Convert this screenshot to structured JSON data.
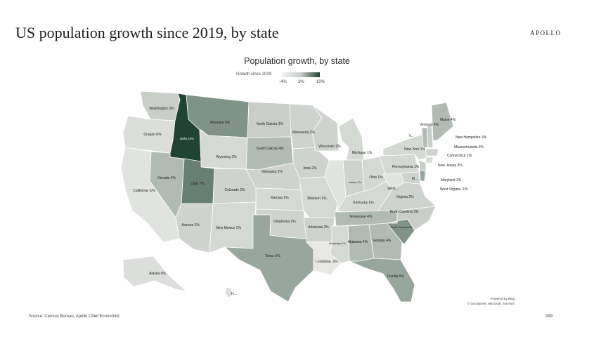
{
  "header": {
    "title": "US population growth since 2019, by state",
    "brand": "APOLLO"
  },
  "chart_title": "Population growth, by state",
  "legend": {
    "label": "Growth since 2019",
    "ticks": [
      "-4%",
      "3%",
      "10%"
    ]
  },
  "colors": {
    "low": "#f3f3f1",
    "mid": "#c9cec9",
    "high": "#1f4433",
    "border": "#ffffff",
    "label_light": "#ffffff",
    "label_dark": "#222222"
  },
  "footer": {
    "source": "Source: Census Bureau, Apollo Chief Economist",
    "page_number": "399",
    "credit_line1": "Powered by Bing",
    "credit_line2": "© GeoNames, Microsoft, TomTom"
  },
  "chart_data": {
    "type": "choropleth",
    "title": "Population growth, by state",
    "legend_title": "Growth since 2019",
    "color_scale": {
      "min": -4,
      "mid": 3,
      "max": 10,
      "unit": "%"
    },
    "states": [
      {
        "state": "Washington",
        "label": "Washington 3%",
        "value": 3
      },
      {
        "state": "Oregon",
        "label": "Oregon 0%",
        "value": 0
      },
      {
        "state": "California",
        "label": "California -1%",
        "value": -1
      },
      {
        "state": "Idaho",
        "label": "Idaho 10%",
        "value": 10
      },
      {
        "state": "Nevada",
        "label": "Nevada 4%",
        "value": 4
      },
      {
        "state": "Montana",
        "label": "Montana 6%",
        "value": 6
      },
      {
        "state": "Wyoming",
        "label": "Wyoming 1%",
        "value": 1
      },
      {
        "state": "Utah",
        "label": "Utah 7%",
        "value": 7
      },
      {
        "state": "Arizona",
        "label": "Arizona 2%",
        "value": 2
      },
      {
        "state": "Colorado",
        "label": "Colorado 2%",
        "value": 2
      },
      {
        "state": "New Mexico",
        "label": "New Mexico 1%",
        "value": 1
      },
      {
        "state": "North Dakota",
        "label": "North Dakota 3%",
        "value": 3
      },
      {
        "state": "South Dakota",
        "label": "South Dakota 4%",
        "value": 4
      },
      {
        "state": "Nebraska",
        "label": "Nebraska 2%",
        "value": 2
      },
      {
        "state": "Kansas",
        "label": "Kansas 1%",
        "value": 1
      },
      {
        "state": "Oklahoma",
        "label": "Oklahoma 2%",
        "value": 2
      },
      {
        "state": "Texas",
        "label": "Texas 5%",
        "value": 5
      },
      {
        "state": "Minnesota",
        "label": "Minnesota 2%",
        "value": 2
      },
      {
        "state": "Iowa",
        "label": "Iowa 2%",
        "value": 2
      },
      {
        "state": "Missouri",
        "label": "Missouri 1%",
        "value": 1
      },
      {
        "state": "Arkansas",
        "label": "Arkansas 2%",
        "value": 2
      },
      {
        "state": "Louisiana",
        "label": "Louisiana -2%",
        "value": -2
      },
      {
        "state": "Wisconsin",
        "label": "Wisconsin 2%",
        "value": 2
      },
      {
        "state": "Illinois",
        "label": "",
        "value": -1
      },
      {
        "state": "Michigan",
        "label": "Michigan 1%",
        "value": 1
      },
      {
        "state": "Indiana",
        "label": "Indiana 2%",
        "value": 2
      },
      {
        "state": "Ohio",
        "label": "Ohio 1%",
        "value": 1
      },
      {
        "state": "Kentucky",
        "label": "Kentucky 1%",
        "value": 1
      },
      {
        "state": "Tennessee",
        "label": "Tennessee 4%",
        "value": 4
      },
      {
        "state": "Mississippi",
        "label": "Mississippi 1%",
        "value": 1
      },
      {
        "state": "Alabama",
        "label": "Alabama 4%",
        "value": 4
      },
      {
        "state": "Georgia",
        "label": "Georgia 4%",
        "value": 4
      },
      {
        "state": "Florida",
        "label": "Florida 5%",
        "value": 5
      },
      {
        "state": "South Carolina",
        "label": "South Carolina 6%",
        "value": 6
      },
      {
        "state": "North Carolina",
        "label": "North Carolina 3%",
        "value": 3
      },
      {
        "state": "Virginia",
        "label": "Virginia 2%",
        "value": 2
      },
      {
        "state": "West Virginia",
        "label": "West Virginia -1%",
        "value": -1
      },
      {
        "state": "West Virginia",
        "label": "West...",
        "value": -1
      },
      {
        "state": "Maryland",
        "label": "Maryland 2%",
        "value": 2
      },
      {
        "state": "Maryland",
        "label": "M...",
        "value": 2
      },
      {
        "state": "Pennsylvania",
        "label": "Pennsylvania 1%",
        "value": 1
      },
      {
        "state": "New York",
        "label": "New York 1%",
        "value": 1
      },
      {
        "state": "New Jersey",
        "label": "New Jersey 3%",
        "value": 3
      },
      {
        "state": "Connecticut",
        "label": "Connecticut 1%",
        "value": 1
      },
      {
        "state": "Massachusetts",
        "label": "Massachusetts 2%",
        "value": 2
      },
      {
        "state": "Vermont",
        "label": "Vermont 4%",
        "value": 4
      },
      {
        "state": "Vermont",
        "label": "V...",
        "value": 4
      },
      {
        "state": "New Hampshire",
        "label": "New Hampshire 3%",
        "value": 3
      },
      {
        "state": "Maine",
        "label": "Maine 4%",
        "value": 4
      },
      {
        "state": "Delaware",
        "label": "",
        "value": 5
      },
      {
        "state": "Alaska",
        "label": "Alaska 0%",
        "value": 0
      },
      {
        "state": "Hawaii",
        "label": "H...",
        "value": 0
      }
    ]
  }
}
